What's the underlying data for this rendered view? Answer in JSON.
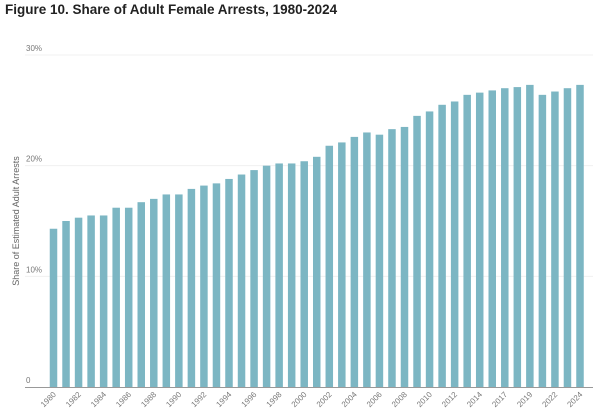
{
  "chart_data": {
    "type": "bar",
    "title": "Figure 10. Share of Adult Female Arrests, 1980-2024",
    "xlabel": "",
    "ylabel": "Share of Estimated Adult Arrests",
    "ylim": [
      0,
      30
    ],
    "yticks": [
      0,
      10,
      20,
      30
    ],
    "ytick_labels": [
      "0",
      "10%",
      "20%",
      "30%"
    ],
    "grid": true,
    "color": "#7cb6c3",
    "categories": [
      "1980",
      "1981",
      "1982",
      "1983",
      "1984",
      "1985",
      "1986",
      "1987",
      "1988",
      "1989",
      "1990",
      "1991",
      "1992",
      "1993",
      "1994",
      "1995",
      "1996",
      "1997",
      "1998",
      "1999",
      "2000",
      "2001",
      "2002",
      "2003",
      "2004",
      "2005",
      "2006",
      "2007",
      "2008",
      "2009",
      "2010",
      "2011",
      "2012",
      "2013",
      "2014",
      "2016",
      "2017",
      "2018",
      "2019",
      "2020",
      "2022",
      "2023",
      "2024"
    ],
    "xtick_labels": [
      "1980",
      "1982",
      "1984",
      "1986",
      "1988",
      "1990",
      "1992",
      "1994",
      "1996",
      "1998",
      "2000",
      "2002",
      "2004",
      "2006",
      "2008",
      "2010",
      "2012",
      "2014",
      "2017",
      "2019",
      "2022",
      "2024"
    ],
    "values": [
      14.3,
      15.0,
      15.3,
      15.5,
      15.5,
      16.2,
      16.2,
      16.7,
      17.0,
      17.4,
      17.4,
      17.9,
      18.2,
      18.4,
      18.8,
      19.2,
      19.6,
      20.0,
      20.2,
      20.2,
      20.4,
      20.8,
      21.8,
      22.1,
      22.6,
      23.0,
      22.8,
      23.3,
      23.5,
      24.5,
      24.9,
      25.5,
      25.8,
      26.4,
      26.6,
      26.8,
      27.0,
      27.1,
      27.3,
      26.4,
      26.7,
      27.0,
      27.3
    ]
  }
}
